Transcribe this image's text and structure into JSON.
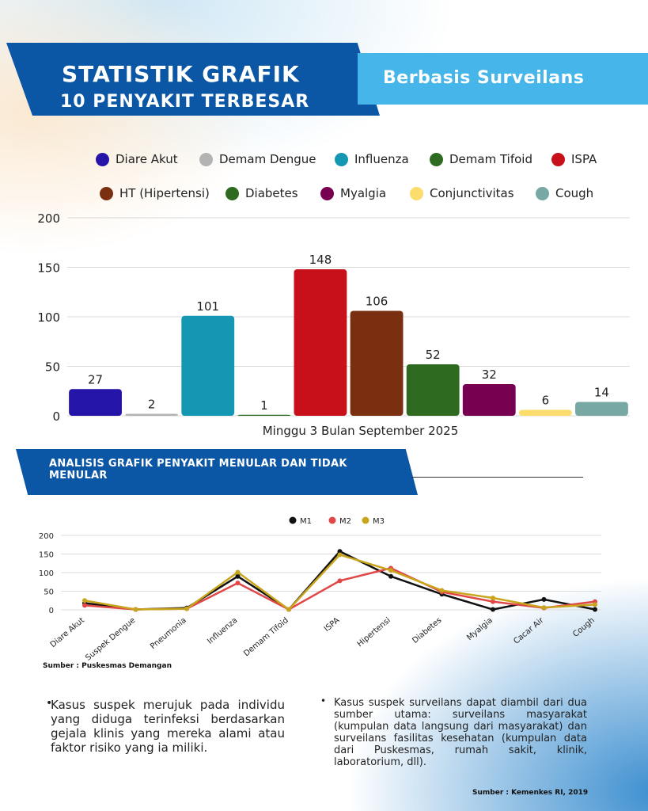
{
  "header": {
    "title_line1": "STATISTIK GRAFIK",
    "title_line2": "10 PENYAKIT TERBESAR",
    "subtitle": "Berbasis Surveilans"
  },
  "legend": [
    {
      "label": "Diare Akut",
      "color": "#2414a8"
    },
    {
      "label": "Demam Dengue",
      "color": "#b3b3b3"
    },
    {
      "label": "Influenza",
      "color": "#1397b3"
    },
    {
      "label": "Demam Tifoid",
      "color": "#2e6b21"
    },
    {
      "label": "ISPA",
      "color": "#c8101a"
    },
    {
      "label": "HT (Hipertensi)",
      "color": "#7a3010"
    },
    {
      "label": "Diabetes",
      "color": "#2e6b21"
    },
    {
      "label": "Myalgia",
      "color": "#780050"
    },
    {
      "label": "Conjunctivitas",
      "color": "#fbdc6c"
    },
    {
      "label": "Cough",
      "color": "#78a8a4"
    }
  ],
  "section": {
    "title": "ANALISIS GRAFIK PENYAKIT MENULAR DAN TIDAK MENULAR"
  },
  "sources": {
    "chart_source": "Sumber : Puskesmas Demangan",
    "notes_source": "Sumber : Kemenkes RI, 2019"
  },
  "notes": [
    "Kasus suspek merujuk pada individu yang diduga terinfeksi berdasarkan gejala klinis yang mereka alami atau faktor risiko yang ia miliki.",
    "Kasus suspek surveilans dapat diambil dari dua sumber utama: surveilans masyarakat (kumpulan data langsung dari masyarakat) dan surveilans fasilitas kesehatan (kumpulan data dari Puskesmas, rumah sakit, klinik, laboratorium, dll)."
  ],
  "chart_data": [
    {
      "type": "bar",
      "xlabel": "Minggu 3 Bulan September 2025",
      "ylim": [
        0,
        200
      ],
      "yticks": [
        0,
        50,
        100,
        150,
        200
      ],
      "grid": true,
      "categories": [
        "Diare Akut",
        "Demam Dengue",
        "Influenza",
        "Demam Tifoid",
        "ISPA",
        "HT (Hipertensi)",
        "Diabetes",
        "Myalgia",
        "Conjunctivitas",
        "Cough"
      ],
      "values": [
        27,
        2,
        101,
        1,
        148,
        106,
        52,
        32,
        6,
        14
      ],
      "colors": [
        "#2414a8",
        "#b3b3b3",
        "#1397b3",
        "#2e6b21",
        "#c8101a",
        "#7a3010",
        "#2e6b21",
        "#780050",
        "#fbdc6c",
        "#78a8a4"
      ]
    },
    {
      "type": "line",
      "ylim": [
        0,
        200
      ],
      "yticks": [
        0,
        50,
        100,
        150,
        200
      ],
      "grid": true,
      "legend_position": "top-center",
      "categories": [
        "Diare Akut",
        "Suspek Dengue",
        "Pneumonia",
        "Influenza",
        "Demam Tifoid",
        "ISPA",
        "Hipertensi",
        "Diabetes",
        "Myalgia",
        "Cacar Air",
        "Cough"
      ],
      "series": [
        {
          "name": "M1",
          "color": "#111111",
          "values": [
            18,
            1,
            5,
            90,
            1,
            157,
            90,
            42,
            1,
            28,
            1
          ]
        },
        {
          "name": "M2",
          "color": "#e04848",
          "values": [
            12,
            1,
            3,
            72,
            1,
            78,
            112,
            48,
            22,
            5,
            22
          ]
        },
        {
          "name": "M3",
          "color": "#c8a51c",
          "values": [
            25,
            1,
            3,
            101,
            1,
            148,
            106,
            52,
            32,
            6,
            14
          ]
        }
      ]
    }
  ]
}
